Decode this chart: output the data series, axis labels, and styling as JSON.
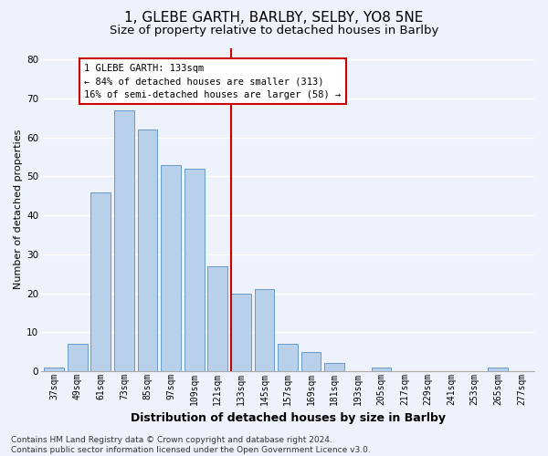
{
  "title1": "1, GLEBE GARTH, BARLBY, SELBY, YO8 5NE",
  "title2": "Size of property relative to detached houses in Barlby",
  "xlabel": "Distribution of detached houses by size in Barlby",
  "ylabel": "Number of detached properties",
  "categories": [
    "37sqm",
    "49sqm",
    "61sqm",
    "73sqm",
    "85sqm",
    "97sqm",
    "109sqm",
    "121sqm",
    "133sqm",
    "145sqm",
    "157sqm",
    "169sqm",
    "181sqm",
    "193sqm",
    "205sqm",
    "217sqm",
    "229sqm",
    "241sqm",
    "253sqm",
    "265sqm",
    "277sqm"
  ],
  "values": [
    1,
    7,
    46,
    67,
    62,
    53,
    52,
    27,
    20,
    21,
    7,
    5,
    2,
    0,
    1,
    0,
    0,
    0,
    0,
    1,
    0
  ],
  "bar_color": "#b8d0ea",
  "bar_edge_color": "#6699cc",
  "vline_index": 8,
  "vline_color": "#cc0000",
  "annotation_text": "1 GLEBE GARTH: 133sqm\n← 84% of detached houses are smaller (313)\n16% of semi-detached houses are larger (58) →",
  "annotation_box_color": "#ffffff",
  "annotation_box_edge": "#cc0000",
  "ylim": [
    0,
    83
  ],
  "yticks": [
    0,
    10,
    20,
    30,
    40,
    50,
    60,
    70,
    80
  ],
  "footer_text": "Contains HM Land Registry data © Crown copyright and database right 2024.\nContains public sector information licensed under the Open Government Licence v3.0.",
  "background_color": "#eef2fa",
  "grid_color": "#ffffff",
  "title1_fontsize": 11,
  "title2_fontsize": 9.5,
  "xlabel_fontsize": 9,
  "ylabel_fontsize": 8,
  "tick_fontsize": 7,
  "footer_fontsize": 6.5,
  "ann_fontsize": 7.5
}
